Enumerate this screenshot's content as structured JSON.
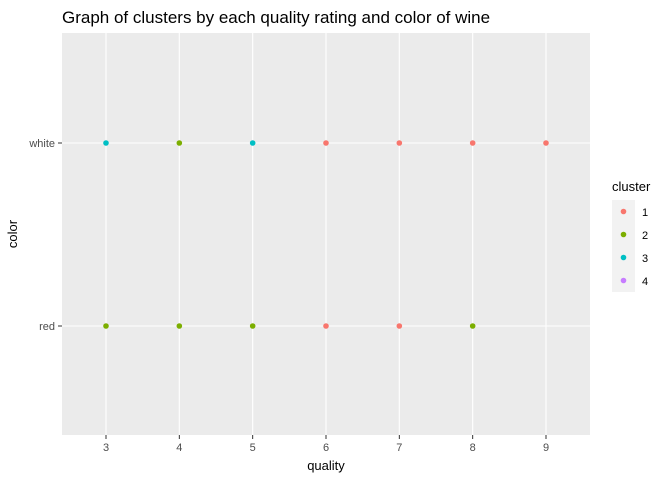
{
  "chart_data": {
    "type": "scatter",
    "title": "Graph of clusters by each quality rating and color of wine",
    "xlabel": "quality",
    "ylabel": "color",
    "x_ticks": [
      3,
      4,
      5,
      6,
      7,
      8,
      9
    ],
    "y_categories": [
      "red",
      "white"
    ],
    "xlim": [
      2.4,
      9.6
    ],
    "grid": true,
    "legend": {
      "title": "cluster",
      "position": "right",
      "entries": [
        {
          "label": "1",
          "color": "#F8766D"
        },
        {
          "label": "2",
          "color": "#7CAE00"
        },
        {
          "label": "3",
          "color": "#00BFC4"
        },
        {
          "label": "4",
          "color": "#C77CFF"
        }
      ]
    },
    "points": [
      {
        "x": 3,
        "y": "white",
        "cluster": "3"
      },
      {
        "x": 4,
        "y": "white",
        "cluster": "2"
      },
      {
        "x": 5,
        "y": "white",
        "cluster": "3"
      },
      {
        "x": 6,
        "y": "white",
        "cluster": "1"
      },
      {
        "x": 7,
        "y": "white",
        "cluster": "1"
      },
      {
        "x": 8,
        "y": "white",
        "cluster": "1"
      },
      {
        "x": 9,
        "y": "white",
        "cluster": "1"
      },
      {
        "x": 3,
        "y": "red",
        "cluster": "2"
      },
      {
        "x": 4,
        "y": "red",
        "cluster": "2"
      },
      {
        "x": 5,
        "y": "red",
        "cluster": "2"
      },
      {
        "x": 6,
        "y": "red",
        "cluster": "1"
      },
      {
        "x": 7,
        "y": "red",
        "cluster": "1"
      },
      {
        "x": 8,
        "y": "red",
        "cluster": "2"
      }
    ],
    "colors": {
      "panel_background": "#EBEBEB",
      "grid_major": "#FFFFFF",
      "legend_key_background": "#F2F2F2"
    }
  }
}
